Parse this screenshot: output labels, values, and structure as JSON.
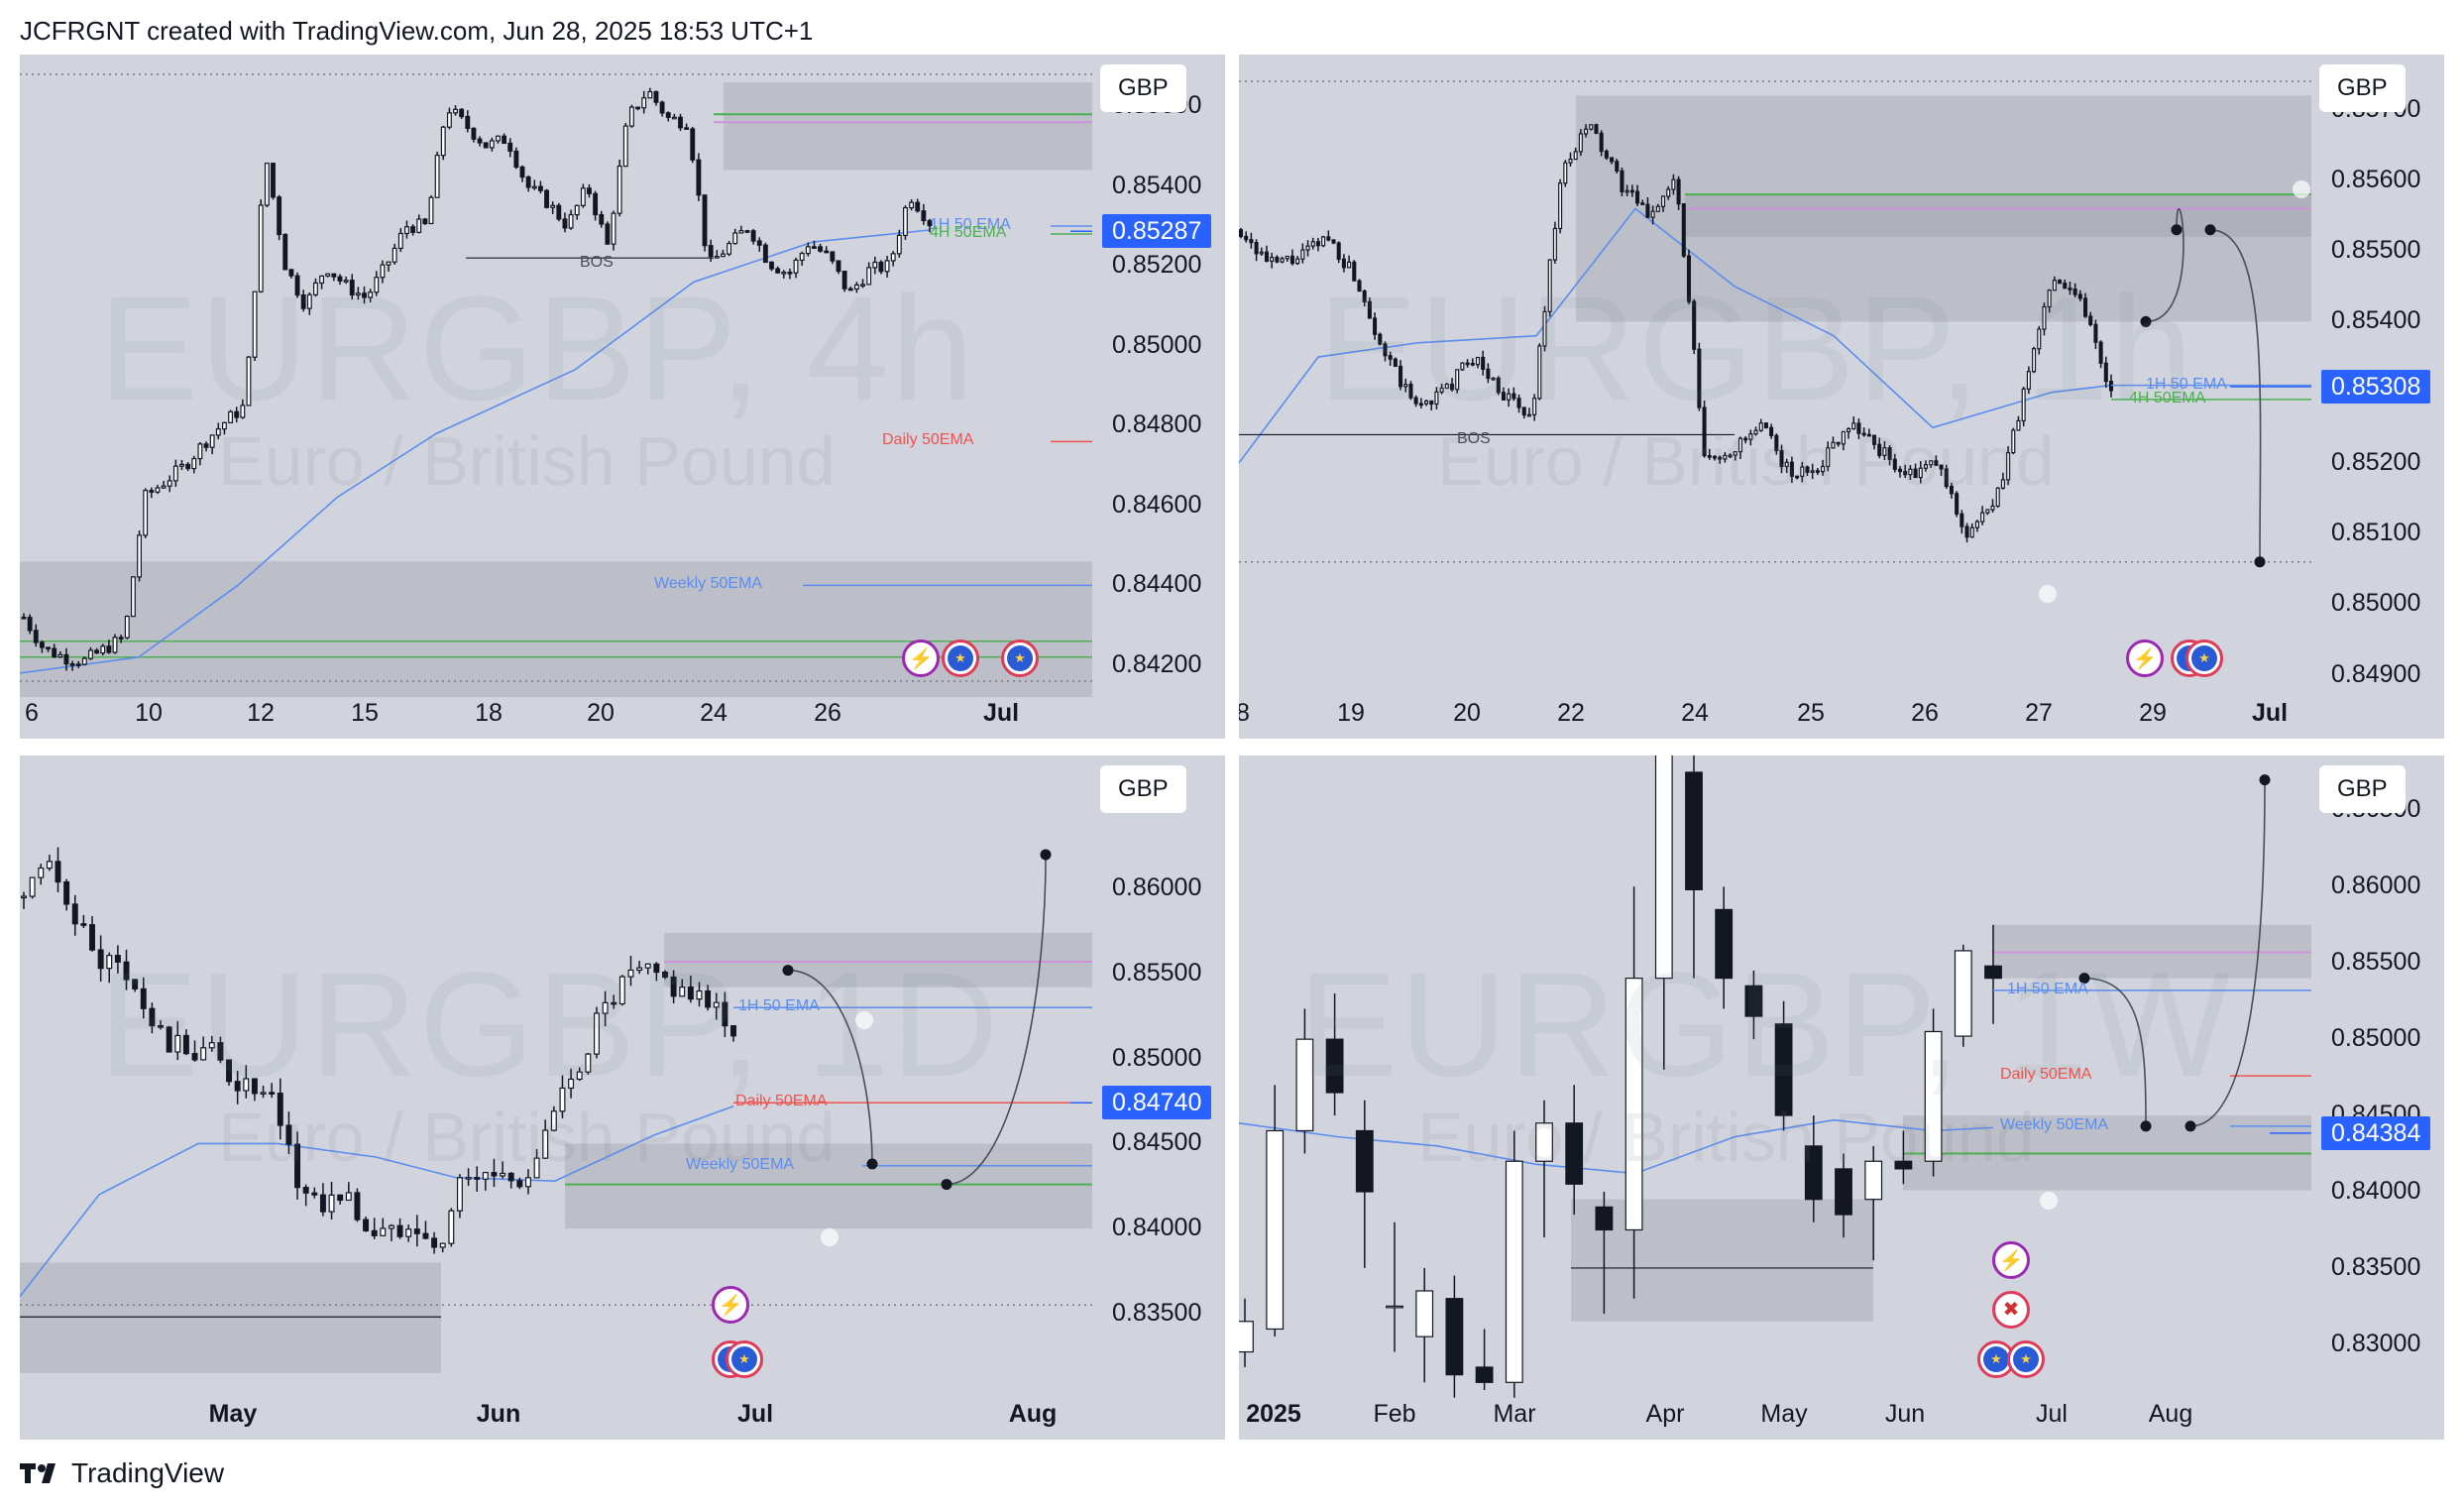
{
  "header": {
    "text": "JCFRGNT created with TradingView.com, Jun 28, 2025 18:53 UTC+1"
  },
  "footer": {
    "brand": "TradingView"
  },
  "icons": {
    "logo": "tradingview-logo-icon",
    "bolt": "lightning-event-icon",
    "eu": "eu-flag-icon",
    "uk": "uk-flag-icon",
    "clock": "clock-icon"
  },
  "colors": {
    "panel_bg": "#d1d4dc",
    "zone": "#b8bbc4",
    "candle_up": "#ffffff",
    "candle_down": "#131722",
    "ema_blue": "#5b8def",
    "ema_green": "#4caf50",
    "ema_red": "#ef5350",
    "last_price": "#2962ff"
  },
  "panels": [
    {
      "id": "4h",
      "currency": "GBP",
      "watermark_symbol": "EURGBP, 4h",
      "watermark_desc": "Euro / British Pound",
      "price_ticks": [
        "0.85600",
        "0.85400",
        "0.85200",
        "0.85000",
        "0.84800",
        "0.84600",
        "0.84400",
        "0.84200"
      ],
      "last_price": "0.85287",
      "time_ticks": [
        {
          "t": "6"
        },
        {
          "t": "10"
        },
        {
          "t": "12"
        },
        {
          "t": "15"
        },
        {
          "t": "18"
        },
        {
          "t": "20"
        },
        {
          "t": "24"
        },
        {
          "t": "26"
        },
        {
          "t": "Jul",
          "bold": true
        }
      ],
      "labels": {
        "bos": "BOS",
        "ema_1h": "1H 50 EMA",
        "ema_4h": "4H 50EMA",
        "ema_daily": "Daily 50EMA",
        "ema_weekly": "Weekly 50EMA"
      }
    },
    {
      "id": "1h",
      "currency": "GBP",
      "watermark_symbol": "EURGBP, 1h",
      "watermark_desc": "Euro / British Pound",
      "price_ticks": [
        "0.85700",
        "0.85600",
        "0.85500",
        "0.85400",
        "0.85200",
        "0.85100",
        "0.85000",
        "0.84900"
      ],
      "last_price": "0.85308",
      "time_ticks": [
        {
          "t": "8"
        },
        {
          "t": "19"
        },
        {
          "t": "20"
        },
        {
          "t": "22"
        },
        {
          "t": "24"
        },
        {
          "t": "25"
        },
        {
          "t": "26"
        },
        {
          "t": "27"
        },
        {
          "t": "29"
        },
        {
          "t": "Jul",
          "bold": true
        }
      ],
      "labels": {
        "bos": "BOS",
        "ema_1h": "1H 50 EMA",
        "ema_4h": "4H 50EMA"
      }
    },
    {
      "id": "1d",
      "currency": "GBP",
      "watermark_symbol": "EURGBP, 1D",
      "watermark_desc": "Euro / British Pound",
      "price_ticks": [
        "0.86000",
        "0.85500",
        "0.85000",
        "0.84500",
        "0.84000",
        "0.83500"
      ],
      "last_price": "0.84740",
      "time_ticks": [
        {
          "t": "May",
          "bold": true
        },
        {
          "t": "Jun",
          "bold": true
        },
        {
          "t": "Jul",
          "bold": true
        },
        {
          "t": "Aug",
          "bold": true
        }
      ],
      "labels": {
        "ema_1h": "1H 50 EMA",
        "ema_daily": "Daily 50EMA",
        "ema_weekly": "Weekly 50EMA"
      }
    },
    {
      "id": "1w",
      "currency": "GBP",
      "watermark_symbol": "EURGBP, 1W",
      "watermark_desc": "Euro / British Pound",
      "price_ticks": [
        "0.86500",
        "0.86000",
        "0.85500",
        "0.85000",
        "0.84500",
        "0.84000",
        "0.83500",
        "0.83000"
      ],
      "last_price": "0.84384",
      "time_ticks": [
        {
          "t": "2025",
          "bold": true
        },
        {
          "t": "Feb"
        },
        {
          "t": "Mar"
        },
        {
          "t": "Apr"
        },
        {
          "t": "May"
        },
        {
          "t": "Jun"
        },
        {
          "t": "Jul"
        },
        {
          "t": "Aug"
        }
      ],
      "labels": {
        "ema_1h": "1H 50 EMA",
        "ema_daily": "Daily 50EMA",
        "ema_weekly": "Weekly 50EMA"
      }
    }
  ],
  "chart_data": [
    {
      "type": "candlestick",
      "title": "EURGBP, 4h",
      "ylim": [
        0.8414,
        0.8568
      ],
      "last_price": 0.85287,
      "close_path": [
        0.8432,
        0.8424,
        0.8422,
        0.8421,
        0.8424,
        0.8427,
        0.8462,
        0.8466,
        0.847,
        0.8476,
        0.8481,
        0.8485,
        0.8548,
        0.852,
        0.851,
        0.852,
        0.8515,
        0.8512,
        0.852,
        0.853,
        0.853,
        0.856,
        0.8555,
        0.855,
        0.8552,
        0.854,
        0.8536,
        0.853,
        0.854,
        0.8525,
        0.8557,
        0.8564,
        0.8557,
        0.8556,
        0.852,
        0.8525,
        0.853,
        0.8521,
        0.8518,
        0.8526,
        0.8522,
        0.8513,
        0.8519,
        0.852,
        0.8538,
        0.8531
      ],
      "horizontal_levels": {
        "resistance_zone": [
          0.8544,
          0.8562
        ],
        "support_zone": [
          0.8412,
          0.8445
        ]
      }
    },
    {
      "type": "candlestick",
      "title": "EURGBP, 1h",
      "ylim": [
        0.8488,
        0.8575
      ],
      "last_price": 0.85308,
      "close_path": [
        0.8553,
        0.8548,
        0.8549,
        0.8552,
        0.8546,
        0.8535,
        0.8528,
        0.853,
        0.8535,
        0.853,
        0.8526,
        0.856,
        0.8568,
        0.856,
        0.8555,
        0.856,
        0.852,
        0.8522,
        0.8525,
        0.8518,
        0.852,
        0.8526,
        0.8522,
        0.8518,
        0.852,
        0.851,
        0.8514,
        0.853,
        0.8547,
        0.8543,
        0.853
      ],
      "projection_points": [
        0.854,
        0.8553,
        0.8553,
        0.8506
      ]
    },
    {
      "type": "candlestick",
      "title": "EURGBP, 1D",
      "ylim": [
        0.8305,
        0.8655
      ],
      "last_price": 0.8474,
      "close_path": [
        0.8595,
        0.861,
        0.8595,
        0.856,
        0.8555,
        0.8535,
        0.8512,
        0.8503,
        0.8507,
        0.849,
        0.848,
        0.847,
        0.8425,
        0.8415,
        0.842,
        0.84,
        0.8395,
        0.841,
        0.8384,
        0.8425,
        0.8432,
        0.843,
        0.8432,
        0.846,
        0.849,
        0.852,
        0.854,
        0.855,
        0.8545,
        0.854,
        0.8527,
        0.852
      ],
      "projection_points": [
        0.8552,
        0.8438,
        0.8426,
        0.862
      ]
    },
    {
      "type": "candlestick",
      "title": "EURGBP, 1W",
      "candles": [
        {
          "o": 0.8295,
          "c": 0.8315,
          "h": 0.833,
          "l": 0.8285
        },
        {
          "o": 0.831,
          "c": 0.844,
          "h": 0.847,
          "l": 0.8305
        },
        {
          "o": 0.844,
          "c": 0.85,
          "h": 0.852,
          "l": 0.8425
        },
        {
          "o": 0.85,
          "c": 0.8465,
          "h": 0.853,
          "l": 0.845
        },
        {
          "o": 0.844,
          "c": 0.84,
          "h": 0.846,
          "l": 0.835
        },
        {
          "o": 0.8325,
          "c": 0.8325,
          "h": 0.838,
          "l": 0.8295
        },
        {
          "o": 0.8305,
          "c": 0.8335,
          "h": 0.835,
          "l": 0.8275
        },
        {
          "o": 0.833,
          "c": 0.828,
          "h": 0.8345,
          "l": 0.8265
        },
        {
          "o": 0.8285,
          "c": 0.8275,
          "h": 0.831,
          "l": 0.827
        },
        {
          "o": 0.8275,
          "c": 0.842,
          "h": 0.844,
          "l": 0.8265
        },
        {
          "o": 0.842,
          "c": 0.8445,
          "h": 0.846,
          "l": 0.837
        },
        {
          "o": 0.8445,
          "c": 0.8405,
          "h": 0.847,
          "l": 0.8385
        },
        {
          "o": 0.839,
          "c": 0.8375,
          "h": 0.84,
          "l": 0.832
        },
        {
          "o": 0.8375,
          "c": 0.854,
          "h": 0.86,
          "l": 0.833
        },
        {
          "o": 0.854,
          "c": 0.8725,
          "h": 0.8745,
          "l": 0.848
        },
        {
          "o": 0.8675,
          "c": 0.8598,
          "h": 0.8728,
          "l": 0.854
        },
        {
          "o": 0.8585,
          "c": 0.854,
          "h": 0.86,
          "l": 0.852
        },
        {
          "o": 0.8535,
          "c": 0.8515,
          "h": 0.8545,
          "l": 0.85
        },
        {
          "o": 0.851,
          "c": 0.845,
          "h": 0.8525,
          "l": 0.844
        },
        {
          "o": 0.843,
          "c": 0.8395,
          "h": 0.845,
          "l": 0.838
        },
        {
          "o": 0.8415,
          "c": 0.8385,
          "h": 0.8425,
          "l": 0.837
        },
        {
          "o": 0.8395,
          "c": 0.842,
          "h": 0.843,
          "l": 0.8355
        },
        {
          "o": 0.842,
          "c": 0.8415,
          "h": 0.844,
          "l": 0.8405
        },
        {
          "o": 0.842,
          "c": 0.8505,
          "h": 0.852,
          "l": 0.841
        },
        {
          "o": 0.8502,
          "c": 0.8558,
          "h": 0.8562,
          "l": 0.8495
        },
        {
          "o": 0.8548,
          "c": 0.854,
          "h": 0.8575,
          "l": 0.851
        }
      ],
      "ylim": [
        0.827,
        0.866
      ],
      "last_price": 0.84384,
      "projection_points": [
        0.854,
        0.8443,
        0.8443,
        0.867
      ]
    }
  ]
}
